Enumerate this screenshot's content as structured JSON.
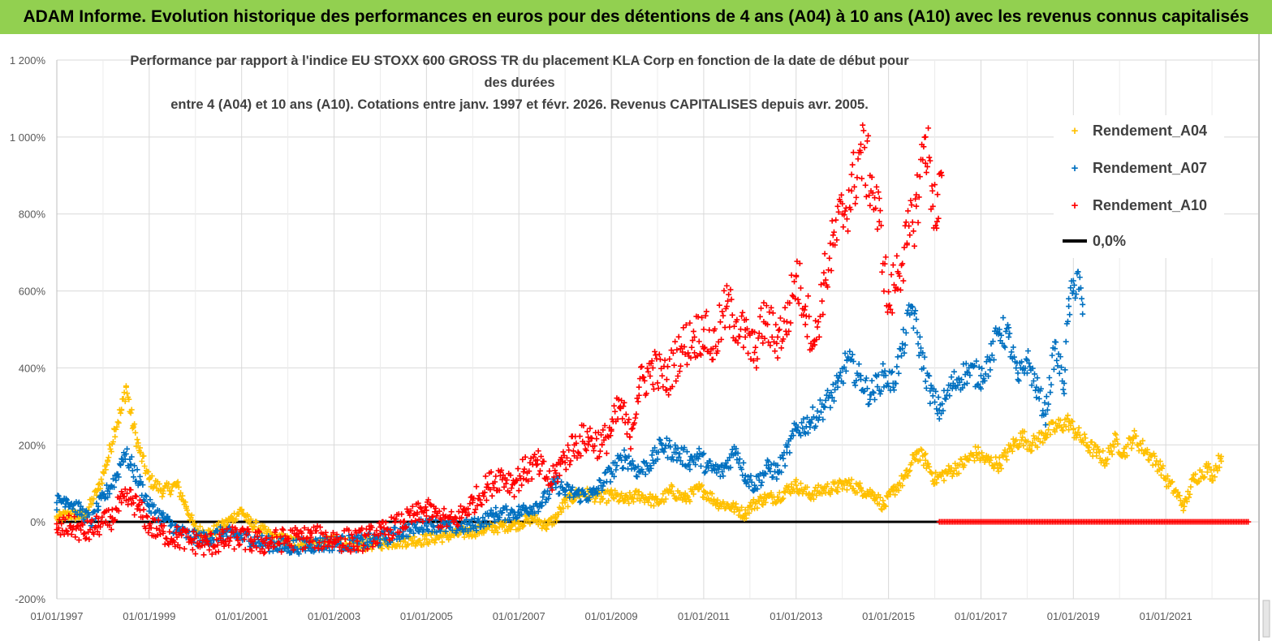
{
  "header": {
    "banner_title": "ADAM Informe. Evolution historique des performances en euros pour des détentions de 4 ans (A04) à 10 ans (A10) avec les revenus connus capitalisés"
  },
  "chart_data": {
    "type": "scatter",
    "title_line1": "Performance par rapport à l'indice EU STOXX 600 GROSS TR  du placement KLA Corp en fonction de la date de début pour des durées",
    "title_line2": "entre 4 (A04) et 10 ans (A10).  Cotations entre janv. 1997 et févr. 2026. Revenus CAPITALISES depuis avr. 2005.",
    "x_range": [
      "1997-01-01",
      "2022-12-31"
    ],
    "xtick_labels": [
      "01/01/1997",
      "01/01/1999",
      "01/01/2001",
      "01/01/2003",
      "01/01/2005",
      "01/01/2007",
      "01/01/2009",
      "01/01/2011",
      "01/01/2013",
      "01/01/2015",
      "01/01/2017",
      "01/01/2019",
      "01/01/2021"
    ],
    "xtick_years": [
      1997,
      1999,
      2001,
      2003,
      2005,
      2007,
      2009,
      2011,
      2013,
      2015,
      2017,
      2019,
      2021
    ],
    "y_range": [
      -200,
      1200
    ],
    "yticks": [
      -200,
      0,
      200,
      400,
      600,
      800,
      1000,
      1200
    ],
    "ytick_labels": [
      "-200%",
      "0%",
      "200%",
      "400%",
      "600%",
      "800%",
      "1 000%",
      "1 200%"
    ],
    "grid": true,
    "legend_position": "top-right",
    "series": [
      {
        "name": "Rendement_A04",
        "color": "#ffc000",
        "marker": "+",
        "points": [
          [
            1997.0,
            10
          ],
          [
            1997.3,
            20
          ],
          [
            1997.6,
            15
          ],
          [
            1997.9,
            85
          ],
          [
            1998.1,
            160
          ],
          [
            1998.25,
            240
          ],
          [
            1998.4,
            290
          ],
          [
            1998.5,
            350
          ],
          [
            1998.65,
            250
          ],
          [
            1998.8,
            180
          ],
          [
            1999.0,
            110
          ],
          [
            1999.3,
            80
          ],
          [
            1999.6,
            95
          ],
          [
            1999.8,
            40
          ],
          [
            2000.0,
            -20
          ],
          [
            2000.3,
            -30
          ],
          [
            2000.6,
            -10
          ],
          [
            2000.8,
            10
          ],
          [
            2001.0,
            30
          ],
          [
            2001.15,
            0
          ],
          [
            2001.4,
            -20
          ],
          [
            2001.7,
            -40
          ],
          [
            2002.0,
            -50
          ],
          [
            2002.5,
            -55
          ],
          [
            2003.0,
            -50
          ],
          [
            2003.5,
            -60
          ],
          [
            2004.0,
            -55
          ],
          [
            2004.5,
            -50
          ],
          [
            2005.0,
            -45
          ],
          [
            2005.5,
            -35
          ],
          [
            2006.0,
            -25
          ],
          [
            2006.5,
            -15
          ],
          [
            2007.0,
            -5
          ],
          [
            2007.3,
            10
          ],
          [
            2007.6,
            -10
          ],
          [
            2007.8,
            10
          ],
          [
            2008.0,
            50
          ],
          [
            2008.3,
            75
          ],
          [
            2008.6,
            70
          ],
          [
            2008.8,
            60
          ],
          [
            2009.0,
            70
          ],
          [
            2009.3,
            55
          ],
          [
            2009.6,
            70
          ],
          [
            2009.8,
            60
          ],
          [
            2010.0,
            50
          ],
          [
            2010.3,
            80
          ],
          [
            2010.6,
            60
          ],
          [
            2010.9,
            85
          ],
          [
            2011.0,
            80
          ],
          [
            2011.3,
            50
          ],
          [
            2011.6,
            40
          ],
          [
            2011.9,
            20
          ],
          [
            2012.0,
            40
          ],
          [
            2012.3,
            60
          ],
          [
            2012.6,
            65
          ],
          [
            2012.9,
            90
          ],
          [
            2013.0,
            95
          ],
          [
            2013.3,
            70
          ],
          [
            2013.6,
            85
          ],
          [
            2013.9,
            90
          ],
          [
            2014.1,
            100
          ],
          [
            2014.4,
            85
          ],
          [
            2014.7,
            70
          ],
          [
            2014.9,
            40
          ],
          [
            2015.1,
            80
          ],
          [
            2015.4,
            120
          ],
          [
            2015.6,
            180
          ],
          [
            2015.8,
            160
          ],
          [
            2016.0,
            110
          ],
          [
            2016.3,
            130
          ],
          [
            2016.6,
            150
          ],
          [
            2016.9,
            180
          ],
          [
            2017.1,
            160
          ],
          [
            2017.4,
            150
          ],
          [
            2017.7,
            200
          ],
          [
            2017.9,
            220
          ],
          [
            2018.1,
            200
          ],
          [
            2018.4,
            230
          ],
          [
            2018.7,
            250
          ],
          [
            2018.9,
            260
          ],
          [
            2019.0,
            240
          ],
          [
            2019.3,
            200
          ],
          [
            2019.5,
            180
          ],
          [
            2019.7,
            160
          ],
          [
            2019.9,
            210
          ],
          [
            2020.1,
            180
          ],
          [
            2020.3,
            220
          ],
          [
            2020.6,
            180
          ],
          [
            2020.9,
            140
          ],
          [
            2021.0,
            110
          ],
          [
            2021.2,
            80
          ],
          [
            2021.4,
            40
          ],
          [
            2021.6,
            110
          ],
          [
            2021.9,
            140
          ],
          [
            2022.0,
            120
          ],
          [
            2022.2,
            170
          ]
        ]
      },
      {
        "name": "Rendement_A07",
        "color": "#0070c0",
        "marker": "+",
        "points": [
          [
            1997.0,
            50
          ],
          [
            1997.2,
            60
          ],
          [
            1997.5,
            30
          ],
          [
            1997.75,
            0
          ],
          [
            1997.9,
            40
          ],
          [
            1998.1,
            80
          ],
          [
            1998.3,
            120
          ],
          [
            1998.45,
            180
          ],
          [
            1998.6,
            150
          ],
          [
            1998.8,
            100
          ],
          [
            1999.0,
            40
          ],
          [
            1999.3,
            10
          ],
          [
            1999.6,
            -20
          ],
          [
            1999.9,
            -40
          ],
          [
            2000.2,
            -45
          ],
          [
            2000.6,
            -30
          ],
          [
            2000.9,
            -35
          ],
          [
            2001.2,
            -45
          ],
          [
            2001.5,
            -55
          ],
          [
            2002.0,
            -65
          ],
          [
            2002.5,
            -60
          ],
          [
            2003.0,
            -55
          ],
          [
            2003.5,
            -55
          ],
          [
            2004.0,
            -45
          ],
          [
            2004.5,
            -25
          ],
          [
            2005.0,
            -5
          ],
          [
            2005.5,
            -15
          ],
          [
            2006.0,
            -10
          ],
          [
            2006.5,
            20
          ],
          [
            2007.0,
            25
          ],
          [
            2007.5,
            50
          ],
          [
            2007.8,
            100
          ],
          [
            2008.0,
            80
          ],
          [
            2008.3,
            70
          ],
          [
            2008.6,
            70
          ],
          [
            2009.0,
            130
          ],
          [
            2009.3,
            170
          ],
          [
            2009.6,
            130
          ],
          [
            2009.9,
            160
          ],
          [
            2010.1,
            200
          ],
          [
            2010.4,
            180
          ],
          [
            2010.7,
            160
          ],
          [
            2010.9,
            170
          ],
          [
            2011.1,
            140
          ],
          [
            2011.4,
            130
          ],
          [
            2011.7,
            190
          ],
          [
            2011.9,
            120
          ],
          [
            2012.1,
            95
          ],
          [
            2012.4,
            140
          ],
          [
            2012.6,
            130
          ],
          [
            2012.8,
            180
          ],
          [
            2013.0,
            240
          ],
          [
            2013.3,
            260
          ],
          [
            2013.6,
            300
          ],
          [
            2013.9,
            350
          ],
          [
            2014.1,
            420
          ],
          [
            2014.4,
            370
          ],
          [
            2014.6,
            330
          ],
          [
            2014.9,
            380
          ],
          [
            2015.1,
            360
          ],
          [
            2015.3,
            450
          ],
          [
            2015.5,
            560
          ],
          [
            2015.7,
            440
          ],
          [
            2015.9,
            340
          ],
          [
            2016.1,
            290
          ],
          [
            2016.4,
            360
          ],
          [
            2016.7,
            390
          ],
          [
            2017.0,
            380
          ],
          [
            2017.2,
            420
          ],
          [
            2017.4,
            500
          ],
          [
            2017.6,
            480
          ],
          [
            2017.8,
            370
          ],
          [
            2018.0,
            420
          ],
          [
            2018.2,
            350
          ],
          [
            2018.4,
            280
          ],
          [
            2018.6,
            450
          ],
          [
            2018.8,
            360
          ],
          [
            2018.9,
            560
          ],
          [
            2019.0,
            600
          ],
          [
            2019.1,
            650
          ],
          [
            2019.2,
            540
          ]
        ]
      },
      {
        "name": "Rendement_A10",
        "color": "#ff0000",
        "marker": "+",
        "points": [
          [
            1997.0,
            -20
          ],
          [
            1997.3,
            -10
          ],
          [
            1997.6,
            -30
          ],
          [
            1997.9,
            -10
          ],
          [
            1998.2,
            10
          ],
          [
            1998.4,
            50
          ],
          [
            1998.6,
            60
          ],
          [
            1998.8,
            30
          ],
          [
            1999.0,
            -10
          ],
          [
            1999.3,
            -30
          ],
          [
            1999.6,
            -40
          ],
          [
            1999.9,
            -50
          ],
          [
            2000.2,
            -60
          ],
          [
            2000.6,
            -50
          ],
          [
            2000.9,
            -40
          ],
          [
            2001.2,
            -50
          ],
          [
            2001.5,
            -55
          ],
          [
            2002.0,
            -45
          ],
          [
            2002.5,
            -40
          ],
          [
            2003.0,
            -45
          ],
          [
            2003.5,
            -50
          ],
          [
            2004.0,
            -30
          ],
          [
            2004.5,
            0
          ],
          [
            2004.8,
            20
          ],
          [
            2005.0,
            30
          ],
          [
            2005.3,
            10
          ],
          [
            2005.6,
            0
          ],
          [
            2006.0,
            50
          ],
          [
            2006.3,
            90
          ],
          [
            2006.6,
            120
          ],
          [
            2006.9,
            100
          ],
          [
            2007.1,
            130
          ],
          [
            2007.4,
            150
          ],
          [
            2007.7,
            100
          ],
          [
            2007.9,
            150
          ],
          [
            2008.2,
            200
          ],
          [
            2008.5,
            220
          ],
          [
            2008.8,
            200
          ],
          [
            2009.0,
            240
          ],
          [
            2009.2,
            300
          ],
          [
            2009.4,
            220
          ],
          [
            2009.6,
            350
          ],
          [
            2009.9,
            400
          ],
          [
            2010.2,
            370
          ],
          [
            2010.5,
            450
          ],
          [
            2010.8,
            480
          ],
          [
            2011.0,
            500
          ],
          [
            2011.2,
            450
          ],
          [
            2011.5,
            560
          ],
          [
            2011.7,
            520
          ],
          [
            2011.9,
            480
          ],
          [
            2012.1,
            440
          ],
          [
            2012.3,
            520
          ],
          [
            2012.6,
            480
          ],
          [
            2012.8,
            520
          ],
          [
            2013.0,
            640
          ],
          [
            2013.2,
            560
          ],
          [
            2013.4,
            460
          ],
          [
            2013.6,
            620
          ],
          [
            2013.8,
            720
          ],
          [
            2014.0,
            800
          ],
          [
            2014.2,
            860
          ],
          [
            2014.4,
            960
          ],
          [
            2014.6,
            900
          ],
          [
            2014.8,
            780
          ],
          [
            2015.0,
            560
          ],
          [
            2015.2,
            650
          ],
          [
            2015.4,
            720
          ],
          [
            2015.6,
            820
          ],
          [
            2015.8,
            1000
          ],
          [
            2015.95,
            860
          ],
          [
            2016.05,
            780
          ],
          [
            2016.15,
            900
          ]
        ]
      },
      {
        "name": "0,0%",
        "color": "#000000",
        "marker": "line",
        "points": [
          [
            1997.0,
            0
          ],
          [
            2016.1,
            0
          ]
        ]
      }
    ],
    "zero_markers_after": [
      2016.1,
      2022.8
    ]
  }
}
